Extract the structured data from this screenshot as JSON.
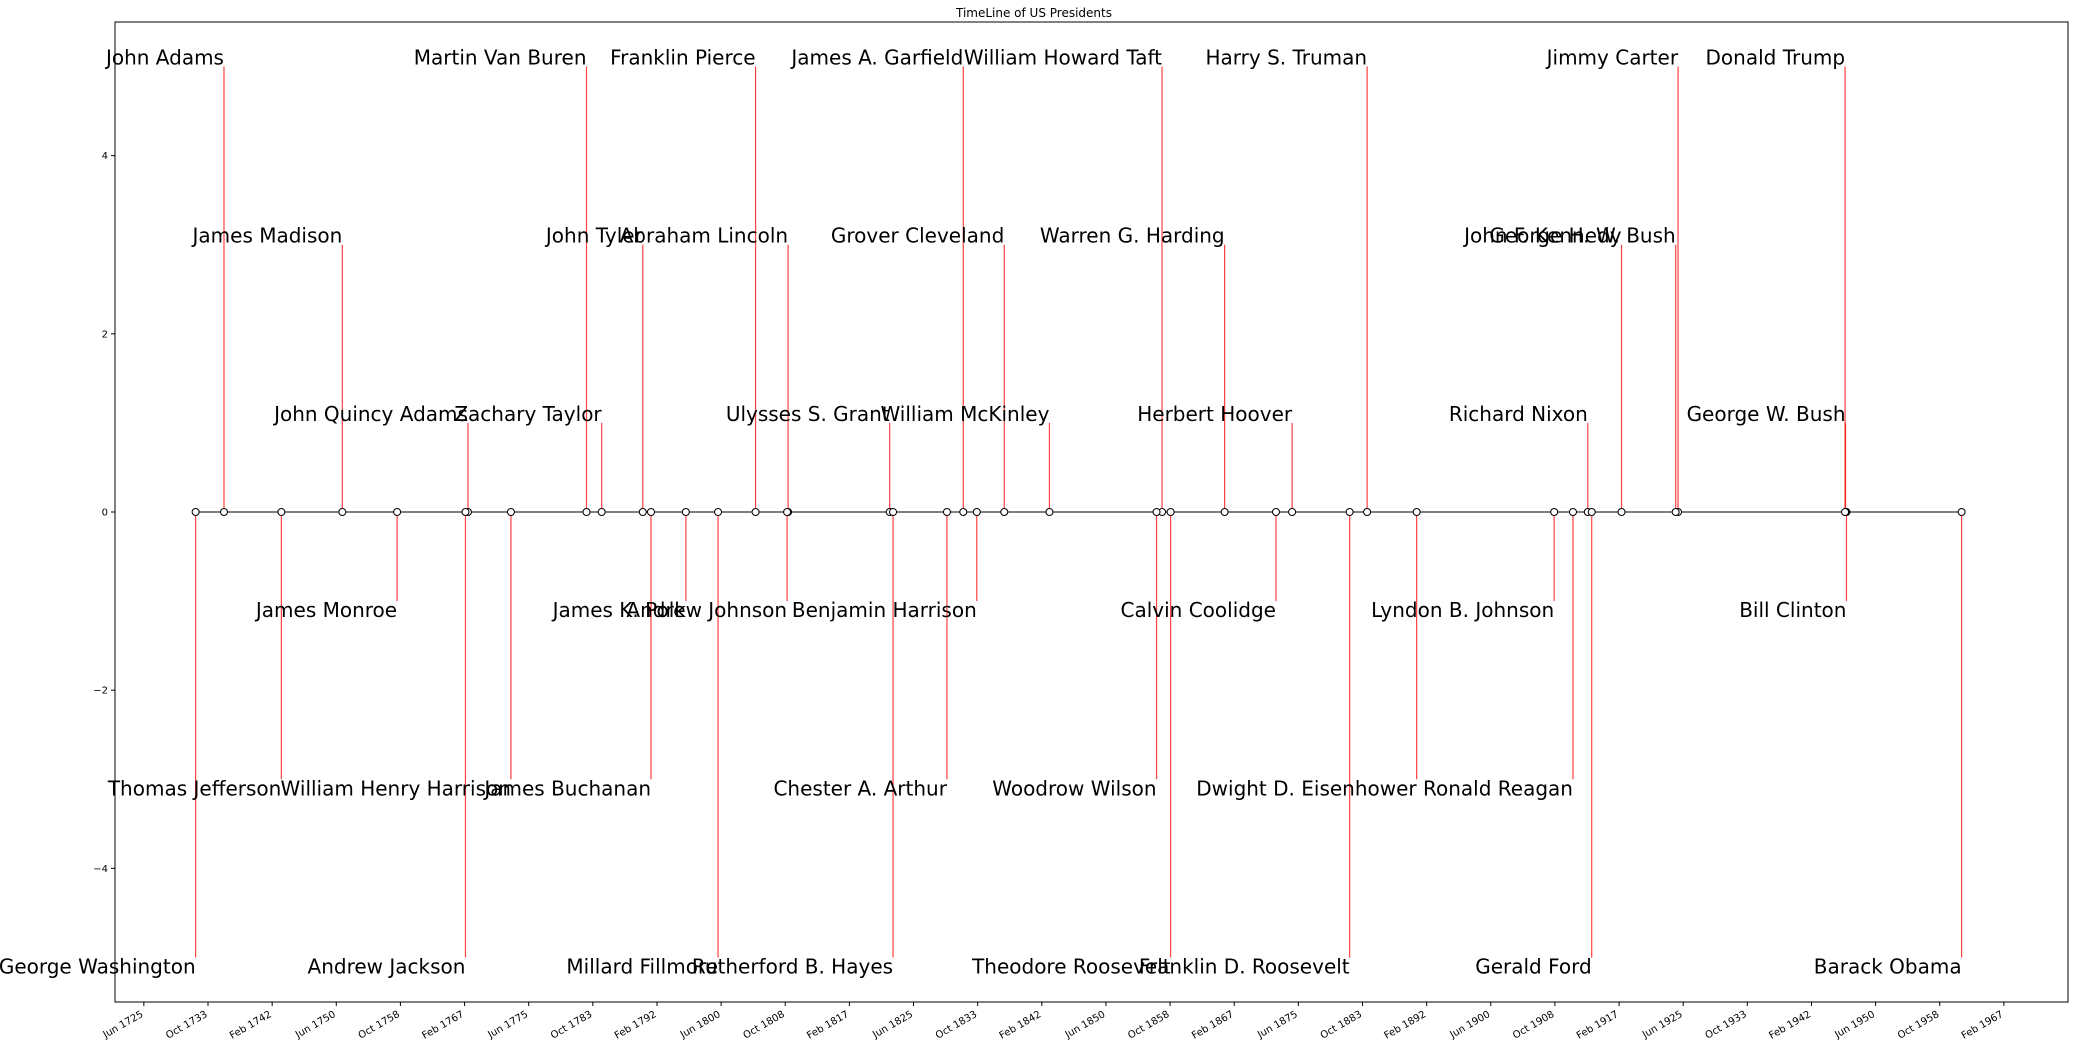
{
  "chart_data": {
    "type": "timeline",
    "title": "TimeLine of US Presidents",
    "xlim": [
      "1721-09-01",
      "1975-06-01"
    ],
    "ylim": [
      -5.5,
      5.5
    ],
    "y_ticks": [
      -4,
      -2,
      0,
      2,
      4
    ],
    "x_ticks": [
      "Jun 1725",
      "Oct 1733",
      "Feb 1742",
      "Jun 1750",
      "Oct 1758",
      "Feb 1767",
      "Jun 1775",
      "Oct 1783",
      "Feb 1792",
      "Jun 1800",
      "Oct 1808",
      "Feb 1817",
      "Jun 1825",
      "Oct 1833",
      "Feb 1842",
      "Jun 1850",
      "Oct 1858",
      "Feb 1867",
      "Jun 1875",
      "Oct 1883",
      "Feb 1892",
      "Jun 1900",
      "Oct 1908",
      "Feb 1917",
      "Jun 1925",
      "Oct 1933",
      "Feb 1942",
      "Jun 1950",
      "Oct 1958",
      "Feb 1967"
    ],
    "points": [
      {
        "name": "George Washington",
        "date": "1732-02-22",
        "level": -5
      },
      {
        "name": "John Adams",
        "date": "1735-10-30",
        "level": 5
      },
      {
        "name": "Thomas Jefferson",
        "date": "1743-04-13",
        "level": -3
      },
      {
        "name": "James Madison",
        "date": "1751-03-16",
        "level": 3
      },
      {
        "name": "James Monroe",
        "date": "1758-04-28",
        "level": -1
      },
      {
        "name": "John Quincy Adams",
        "date": "1767-07-11",
        "level": 1
      },
      {
        "name": "Andrew Jackson",
        "date": "1767-03-15",
        "level": -5
      },
      {
        "name": "Martin Van Buren",
        "date": "1782-12-05",
        "level": 5
      },
      {
        "name": "William Henry Harrison",
        "date": "1773-02-09",
        "level": -3
      },
      {
        "name": "John Tyler",
        "date": "1790-03-29",
        "level": 3
      },
      {
        "name": "James K. Polk",
        "date": "1795-11-02",
        "level": -1
      },
      {
        "name": "Zachary Taylor",
        "date": "1784-11-24",
        "level": 1
      },
      {
        "name": "Millard Fillmore",
        "date": "1800-01-07",
        "level": -5
      },
      {
        "name": "Franklin Pierce",
        "date": "1804-11-23",
        "level": 5
      },
      {
        "name": "James Buchanan",
        "date": "1791-04-23",
        "level": -3
      },
      {
        "name": "Abraham Lincoln",
        "date": "1809-02-12",
        "level": 3
      },
      {
        "name": "Andrew Johnson",
        "date": "1808-12-29",
        "level": -1
      },
      {
        "name": "Ulysses S. Grant",
        "date": "1822-04-27",
        "level": 1
      },
      {
        "name": "Rutherford B. Hayes",
        "date": "1822-10-04",
        "level": -5
      },
      {
        "name": "James A. Garfield",
        "date": "1831-11-19",
        "level": 5
      },
      {
        "name": "Chester A. Arthur",
        "date": "1829-10-05",
        "level": -3
      },
      {
        "name": "Grover Cleveland",
        "date": "1837-03-18",
        "level": 3
      },
      {
        "name": "Benjamin Harrison",
        "date": "1833-08-20",
        "level": -1
      },
      {
        "name": "William McKinley",
        "date": "1843-01-29",
        "level": 1
      },
      {
        "name": "Theodore Roosevelt",
        "date": "1858-10-27",
        "level": -5
      },
      {
        "name": "William Howard Taft",
        "date": "1857-09-15",
        "level": 5
      },
      {
        "name": "Woodrow Wilson",
        "date": "1856-12-28",
        "level": -3
      },
      {
        "name": "Warren G. Harding",
        "date": "1865-11-02",
        "level": 3
      },
      {
        "name": "Calvin Coolidge",
        "date": "1872-07-04",
        "level": -1
      },
      {
        "name": "Herbert Hoover",
        "date": "1874-08-10",
        "level": 1
      },
      {
        "name": "Franklin D. Roosevelt",
        "date": "1882-01-30",
        "level": -5
      },
      {
        "name": "Harry S. Truman",
        "date": "1884-05-08",
        "level": 5
      },
      {
        "name": "Dwight D. Eisenhower",
        "date": "1890-10-14",
        "level": -3
      },
      {
        "name": "John F. Kennedy",
        "date": "1917-05-29",
        "level": 3
      },
      {
        "name": "Lyndon B. Johnson",
        "date": "1908-08-27",
        "level": -1
      },
      {
        "name": "Richard Nixon",
        "date": "1913-01-09",
        "level": 1
      },
      {
        "name": "Gerald Ford",
        "date": "1913-07-14",
        "level": -5
      },
      {
        "name": "Jimmy Carter",
        "date": "1924-10-01",
        "level": 5
      },
      {
        "name": "Ronald Reagan",
        "date": "1911-02-06",
        "level": -3
      },
      {
        "name": "George H. W. Bush",
        "date": "1924-06-12",
        "level": 3
      },
      {
        "name": "Bill Clinton",
        "date": "1946-08-19",
        "level": -1
      },
      {
        "name": "George W. Bush",
        "date": "1946-07-06",
        "level": 1
      },
      {
        "name": "Barack Obama",
        "date": "1961-08-04",
        "level": -5
      },
      {
        "name": "Donald Trump",
        "date": "1946-06-14",
        "level": 5
      }
    ]
  }
}
